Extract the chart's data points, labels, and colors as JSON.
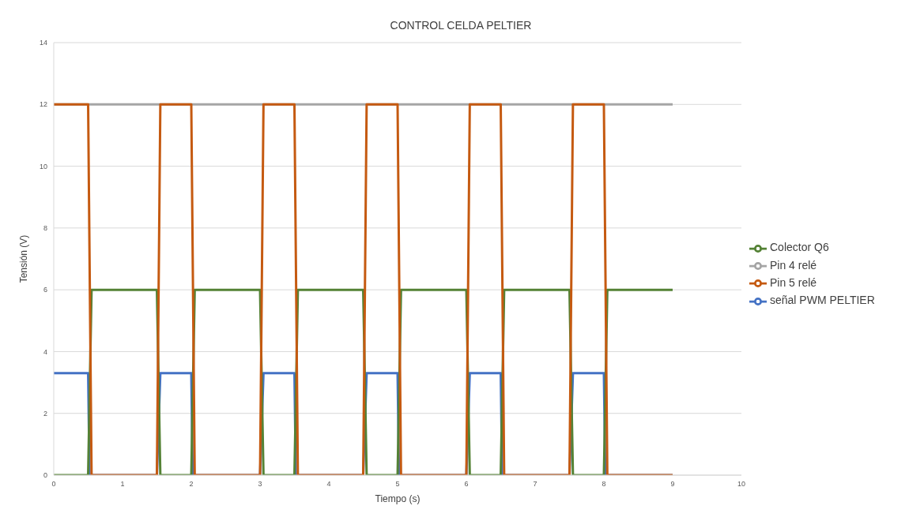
{
  "chart_data": {
    "type": "line",
    "title": "CONTROL CELDA PELTIER",
    "xlabel": "Tiempo (s)",
    "ylabel": "Tensión (V)",
    "xlim": [
      0,
      10
    ],
    "xticks": [
      0,
      1,
      2,
      3,
      4,
      5,
      6,
      7,
      8,
      9,
      10
    ],
    "ylim": [
      0,
      14
    ],
    "yticks": [
      0,
      2,
      4,
      6,
      8,
      10,
      12,
      14
    ],
    "grid": "y",
    "legend": "right",
    "marker": "none",
    "line_style": "solid",
    "series": [
      {
        "name": "señal PWM PELTIER",
        "color": "#4472c4",
        "x": [
          0,
          0.5,
          0.52,
          1.5,
          1.55,
          2,
          2.02,
          3,
          3.05,
          3.5,
          3.52,
          4.5,
          4.55,
          5,
          5.02,
          6,
          6.05,
          6.5,
          6.52,
          7.5,
          7.55,
          8,
          8.02,
          9
        ],
        "values": [
          3.3,
          3.3,
          0,
          0,
          3.3,
          3.3,
          0,
          0,
          3.3,
          3.3,
          0,
          0,
          3.3,
          3.3,
          0,
          0,
          3.3,
          3.3,
          0,
          0,
          3.3,
          3.3,
          0,
          0
        ]
      },
      {
        "name": "Colector Q6",
        "color": "#548235",
        "x": [
          0,
          0.5,
          0.55,
          1.5,
          1.55,
          2,
          2.05,
          3,
          3.05,
          3.5,
          3.55,
          4.5,
          4.55,
          5,
          5.05,
          6,
          6.05,
          6.5,
          6.55,
          7.5,
          7.55,
          8,
          8.05,
          9
        ],
        "values": [
          0,
          0,
          6,
          6,
          0,
          0,
          6,
          6,
          0,
          0,
          6,
          6,
          0,
          0,
          6,
          6,
          0,
          0,
          6,
          6,
          0,
          0,
          6,
          6
        ]
      },
      {
        "name": "Pin 4 relé",
        "color": "#a5a5a5",
        "x": [
          0,
          9
        ],
        "values": [
          12,
          12
        ]
      },
      {
        "name": "Pin 5 relé",
        "color": "#c55a11",
        "x": [
          0,
          0.5,
          0.55,
          1.5,
          1.55,
          2,
          2.05,
          3,
          3.05,
          3.5,
          3.55,
          4.5,
          4.55,
          5,
          5.05,
          6,
          6.05,
          6.5,
          6.55,
          7.5,
          7.55,
          8,
          8.05,
          9
        ],
        "values": [
          12,
          12,
          0,
          0,
          12,
          12,
          0,
          0,
          12,
          12,
          0,
          0,
          12,
          12,
          0,
          0,
          12,
          12,
          0,
          0,
          12,
          12,
          0,
          0
        ]
      }
    ]
  }
}
